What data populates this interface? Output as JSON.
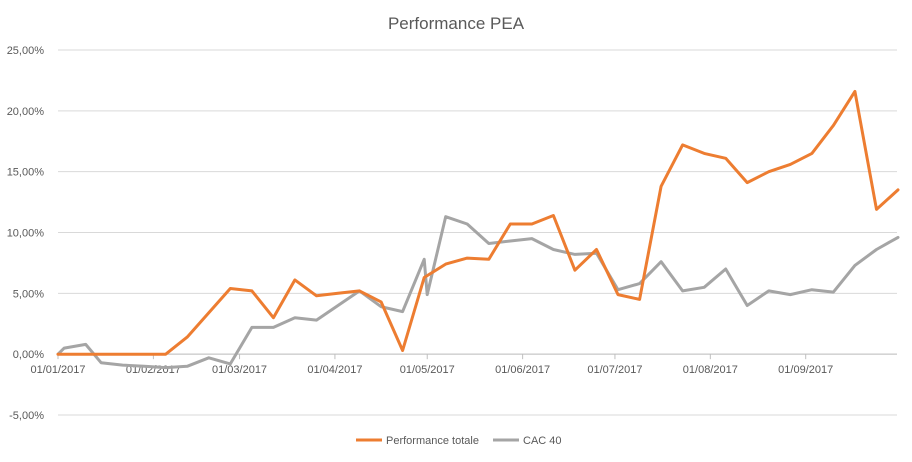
{
  "chart_data": {
    "type": "line",
    "title": "Performance PEA",
    "xlabel": "",
    "ylabel": "",
    "x_ticks": [
      "01/01/2017",
      "01/02/2017",
      "01/03/2017",
      "01/04/2017",
      "01/05/2017",
      "01/06/2017",
      "01/07/2017",
      "01/08/2017",
      "01/09/2017"
    ],
    "y_ticks": [
      "-5,00%",
      "0,00%",
      "5,00%",
      "10,00%",
      "15,00%",
      "20,00%",
      "25,00%"
    ],
    "ylim": [
      -5,
      25
    ],
    "xlim": [
      "2017-01-01",
      "2017-09-28"
    ],
    "grid": true,
    "legend_position": "bottom",
    "series": [
      {
        "name": "Performance totale",
        "color": "#ed7d31",
        "points": [
          [
            "2017-01-01",
            0.0
          ],
          [
            "2017-01-08",
            0.0
          ],
          [
            "2017-01-15",
            0.0
          ],
          [
            "2017-01-22",
            0.0
          ],
          [
            "2017-01-29",
            0.0
          ],
          [
            "2017-02-05",
            0.0
          ],
          [
            "2017-02-12",
            1.4
          ],
          [
            "2017-02-19",
            3.4
          ],
          [
            "2017-02-26",
            5.4
          ],
          [
            "2017-03-05",
            5.2
          ],
          [
            "2017-03-12",
            3.0
          ],
          [
            "2017-03-19",
            6.1
          ],
          [
            "2017-03-26",
            4.8
          ],
          [
            "2017-04-02",
            5.0
          ],
          [
            "2017-04-09",
            5.2
          ],
          [
            "2017-04-16",
            4.3
          ],
          [
            "2017-04-23",
            0.3
          ],
          [
            "2017-04-30",
            6.3
          ],
          [
            "2017-05-07",
            7.4
          ],
          [
            "2017-05-14",
            7.9
          ],
          [
            "2017-05-21",
            7.8
          ],
          [
            "2017-05-28",
            10.7
          ],
          [
            "2017-06-04",
            10.7
          ],
          [
            "2017-06-11",
            11.4
          ],
          [
            "2017-06-18",
            6.9
          ],
          [
            "2017-06-25",
            8.6
          ],
          [
            "2017-07-02",
            4.9
          ],
          [
            "2017-07-09",
            4.5
          ],
          [
            "2017-07-16",
            13.8
          ],
          [
            "2017-07-23",
            17.2
          ],
          [
            "2017-07-30",
            16.5
          ],
          [
            "2017-08-06",
            16.1
          ],
          [
            "2017-08-13",
            14.1
          ],
          [
            "2017-08-20",
            15.0
          ],
          [
            "2017-08-27",
            15.6
          ],
          [
            "2017-09-03",
            16.5
          ],
          [
            "2017-09-10",
            18.8
          ],
          [
            "2017-09-17",
            21.6
          ],
          [
            "2017-09-24",
            11.9
          ],
          [
            "2017-10-01",
            13.5
          ]
        ]
      },
      {
        "name": "CAC 40",
        "color": "#a5a5a5",
        "points": [
          [
            "2017-01-01",
            0.0
          ],
          [
            "2017-01-03",
            0.5
          ],
          [
            "2017-01-10",
            0.8
          ],
          [
            "2017-01-15",
            -0.7
          ],
          [
            "2017-01-22",
            -0.9
          ],
          [
            "2017-01-29",
            -1.0
          ],
          [
            "2017-02-05",
            -1.1
          ],
          [
            "2017-02-12",
            -1.0
          ],
          [
            "2017-02-19",
            -0.3
          ],
          [
            "2017-02-26",
            -0.8
          ],
          [
            "2017-03-05",
            2.2
          ],
          [
            "2017-03-12",
            2.2
          ],
          [
            "2017-03-19",
            3.0
          ],
          [
            "2017-03-26",
            2.8
          ],
          [
            "2017-04-02",
            4.0
          ],
          [
            "2017-04-09",
            5.2
          ],
          [
            "2017-04-16",
            3.9
          ],
          [
            "2017-04-23",
            3.5
          ],
          [
            "2017-04-30",
            7.8
          ],
          [
            "2017-05-01",
            4.9
          ],
          [
            "2017-05-07",
            11.3
          ],
          [
            "2017-05-14",
            10.7
          ],
          [
            "2017-05-21",
            9.1
          ],
          [
            "2017-05-28",
            9.3
          ],
          [
            "2017-06-04",
            9.5
          ],
          [
            "2017-06-11",
            8.6
          ],
          [
            "2017-06-18",
            8.2
          ],
          [
            "2017-06-25",
            8.3
          ],
          [
            "2017-07-02",
            5.3
          ],
          [
            "2017-07-09",
            5.8
          ],
          [
            "2017-07-16",
            7.6
          ],
          [
            "2017-07-23",
            5.2
          ],
          [
            "2017-07-30",
            5.5
          ],
          [
            "2017-08-06",
            7.0
          ],
          [
            "2017-08-13",
            4.0
          ],
          [
            "2017-08-20",
            5.2
          ],
          [
            "2017-08-27",
            4.9
          ],
          [
            "2017-09-03",
            5.3
          ],
          [
            "2017-09-10",
            5.1
          ],
          [
            "2017-09-17",
            7.3
          ],
          [
            "2017-09-24",
            8.6
          ],
          [
            "2017-10-01",
            9.6
          ]
        ]
      }
    ]
  }
}
